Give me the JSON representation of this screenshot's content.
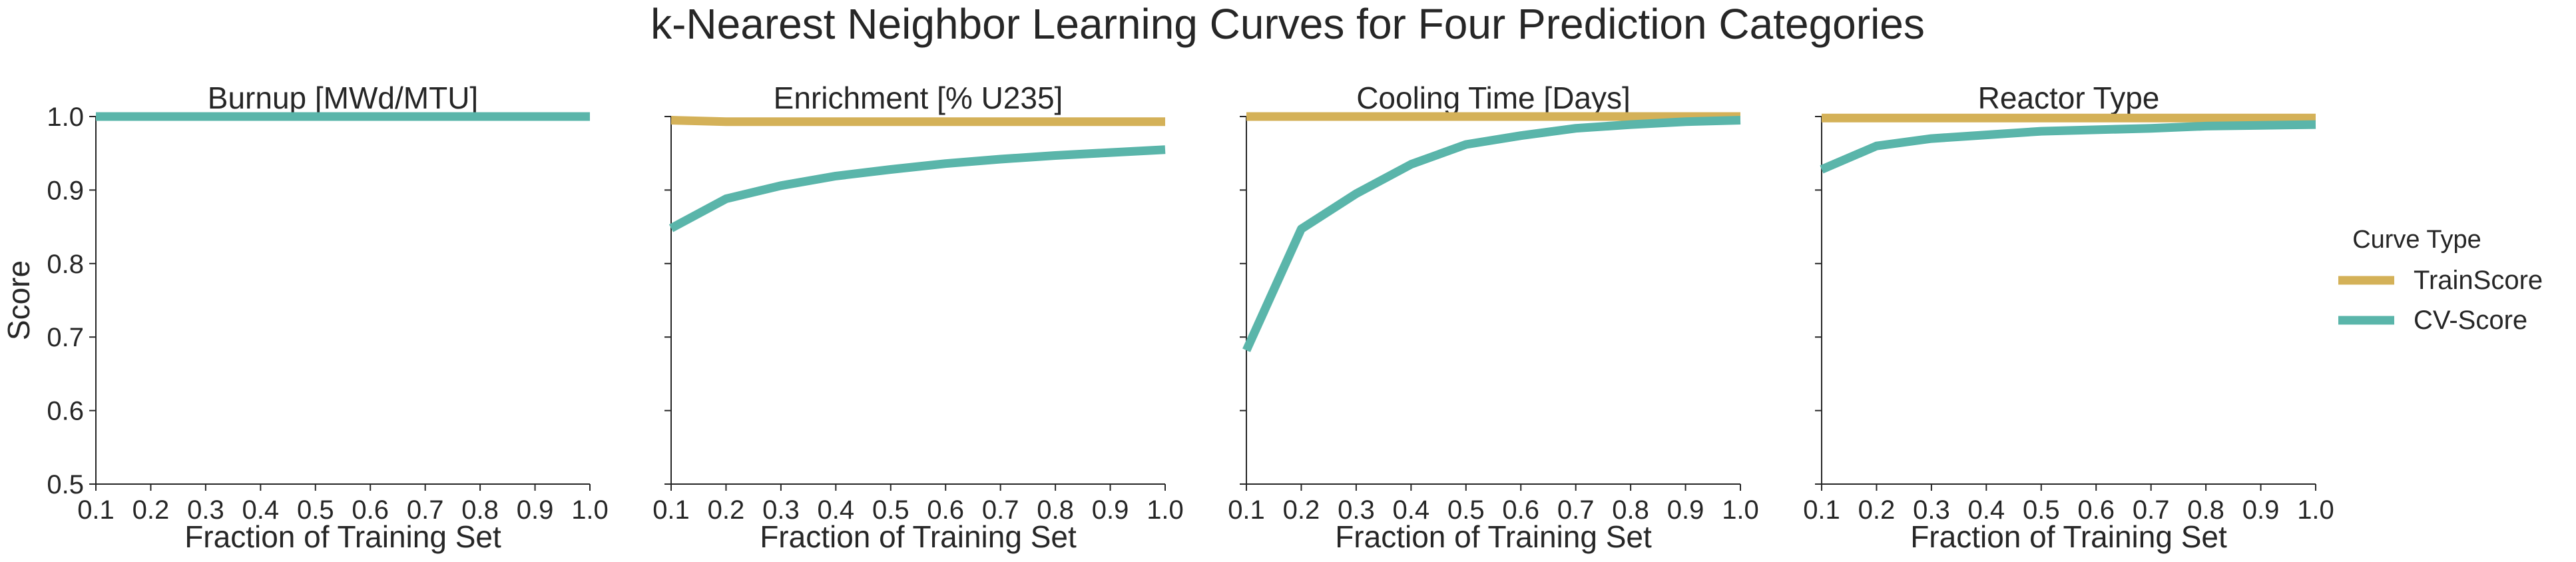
{
  "figure": {
    "title": "k-Nearest Neighbor Learning Curves for Four Prediction Categories"
  },
  "legend": {
    "title": "Curve Type",
    "placement": "right"
  },
  "colors": {
    "train": "#D4B158",
    "cv": "#5AB5AA",
    "axis": "#262626"
  },
  "chart_data": [
    {
      "type": "line",
      "title": "Burnup [MWd/MTU]",
      "xlabel": "Fraction of Training Set",
      "ylabel": "Score",
      "xlim": [
        0.1,
        1.0
      ],
      "ylim": [
        0.5,
        1.0
      ],
      "xticks": [
        "0.1",
        "0.2",
        "0.3",
        "0.4",
        "0.5",
        "0.6",
        "0.7",
        "0.8",
        "0.9",
        "1.0"
      ],
      "yticks": [
        "0.5",
        "0.6",
        "0.7",
        "0.8",
        "0.9",
        "1.0"
      ],
      "x": [
        0.1,
        0.2,
        0.3,
        0.4,
        0.5,
        0.6,
        0.7,
        0.8,
        0.9,
        1.0
      ],
      "series": [
        {
          "name": "TrainScore",
          "values": [
            1.0,
            1.0,
            1.0,
            1.0,
            1.0,
            1.0,
            1.0,
            1.0,
            1.0,
            1.0
          ]
        },
        {
          "name": "CV-Score",
          "values": [
            1.0,
            1.0,
            1.0,
            1.0,
            1.0,
            1.0,
            1.0,
            1.0,
            1.0,
            1.0
          ]
        }
      ]
    },
    {
      "type": "line",
      "title": "Enrichment [% U235]",
      "xlabel": "Fraction of Training Set",
      "ylabel": "",
      "xlim": [
        0.1,
        1.0
      ],
      "ylim": [
        0.5,
        1.0
      ],
      "xticks": [
        "0.1",
        "0.2",
        "0.3",
        "0.4",
        "0.5",
        "0.6",
        "0.7",
        "0.8",
        "0.9",
        "1.0"
      ],
      "yticks": [],
      "x": [
        0.1,
        0.2,
        0.3,
        0.4,
        0.5,
        0.6,
        0.7,
        0.8,
        0.9,
        1.0
      ],
      "series": [
        {
          "name": "TrainScore",
          "values": [
            0.995,
            0.993,
            0.993,
            0.993,
            0.993,
            0.993,
            0.993,
            0.993,
            0.993,
            0.993
          ]
        },
        {
          "name": "CV-Score",
          "values": [
            0.848,
            0.888,
            0.906,
            0.919,
            0.928,
            0.936,
            0.942,
            0.947,
            0.951,
            0.955
          ]
        }
      ]
    },
    {
      "type": "line",
      "title": "Cooling Time [Days]",
      "xlabel": "Fraction of Training Set",
      "ylabel": "",
      "xlim": [
        0.1,
        1.0
      ],
      "ylim": [
        0.5,
        1.0
      ],
      "xticks": [
        "0.1",
        "0.2",
        "0.3",
        "0.4",
        "0.5",
        "0.6",
        "0.7",
        "0.8",
        "0.9",
        "1.0"
      ],
      "yticks": [],
      "x": [
        0.1,
        0.2,
        0.3,
        0.4,
        0.5,
        0.6,
        0.7,
        0.8,
        0.9,
        1.0
      ],
      "series": [
        {
          "name": "TrainScore",
          "values": [
            1.0,
            1.0,
            1.0,
            1.0,
            1.0,
            1.0,
            1.0,
            1.0,
            1.0,
            1.0
          ]
        },
        {
          "name": "CV-Score",
          "values": [
            0.682,
            0.847,
            0.895,
            0.935,
            0.962,
            0.974,
            0.984,
            0.989,
            0.993,
            0.995
          ]
        }
      ]
    },
    {
      "type": "line",
      "title": "Reactor Type",
      "xlabel": "Fraction of Training Set",
      "ylabel": "",
      "xlim": [
        0.1,
        1.0
      ],
      "ylim": [
        0.5,
        1.0
      ],
      "xticks": [
        "0.1",
        "0.2",
        "0.3",
        "0.4",
        "0.5",
        "0.6",
        "0.7",
        "0.8",
        "0.9",
        "1.0"
      ],
      "yticks": [],
      "x": [
        0.1,
        0.2,
        0.3,
        0.4,
        0.5,
        0.6,
        0.7,
        0.8,
        0.9,
        1.0
      ],
      "series": [
        {
          "name": "TrainScore",
          "values": [
            0.998,
            0.998,
            0.998,
            0.998,
            0.998,
            0.998,
            0.998,
            0.998,
            0.998,
            0.998
          ]
        },
        {
          "name": "CV-Score",
          "values": [
            0.928,
            0.96,
            0.97,
            0.975,
            0.98,
            0.982,
            0.984,
            0.987,
            0.988,
            0.989
          ]
        }
      ]
    }
  ]
}
